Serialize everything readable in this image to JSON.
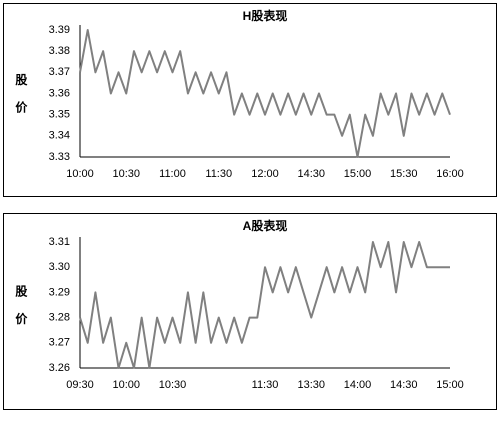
{
  "chart_data": [
    {
      "type": "line",
      "title": "H股表现",
      "y_label": "股 价",
      "categories": [
        "10:00",
        null,
        null,
        null,
        null,
        null,
        "10:30",
        null,
        null,
        null,
        null,
        null,
        "11:00",
        null,
        null,
        null,
        null,
        null,
        "11:30",
        null,
        null,
        null,
        null,
        null,
        "12:00",
        null,
        null,
        null,
        null,
        null,
        "14:30",
        null,
        null,
        null,
        null,
        null,
        "15:00",
        null,
        null,
        null,
        null,
        null,
        "15:30",
        null,
        null,
        null,
        null,
        null,
        "16:00"
      ],
      "series": [
        {
          "color": "#808080",
          "values": [
            3.37,
            3.39,
            3.37,
            3.38,
            3.36,
            3.37,
            3.36,
            3.38,
            3.37,
            3.38,
            3.37,
            3.38,
            3.37,
            3.38,
            3.36,
            3.37,
            3.36,
            3.37,
            3.36,
            3.37,
            3.35,
            3.36,
            3.35,
            3.36,
            3.35,
            3.36,
            3.35,
            3.36,
            3.35,
            3.36,
            3.35,
            3.36,
            3.35,
            3.35,
            3.34,
            3.35,
            3.33,
            3.35,
            3.34,
            3.36,
            3.35,
            3.36,
            3.34,
            3.36,
            3.35,
            3.36,
            3.35,
            3.36,
            3.35
          ]
        }
      ],
      "ylim": [
        3.33,
        3.39
      ],
      "yticks": [
        3.33,
        3.34,
        3.35,
        3.36,
        3.37,
        3.38,
        3.39
      ],
      "grid": false
    },
    {
      "type": "line",
      "title": "A股表现",
      "y_label": "股 价",
      "categories": [
        "09:30",
        null,
        null,
        null,
        null,
        null,
        "10:00",
        null,
        null,
        null,
        null,
        null,
        "10:30",
        null,
        null,
        null,
        null,
        null,
        null,
        null,
        null,
        null,
        null,
        null,
        "11:30",
        null,
        null,
        null,
        null,
        null,
        "13:30",
        null,
        null,
        null,
        null,
        null,
        "14:00",
        null,
        null,
        null,
        null,
        null,
        "14:30",
        null,
        null,
        null,
        null,
        null,
        "15:00"
      ],
      "series": [
        {
          "color": "#808080",
          "values": [
            3.28,
            3.27,
            3.29,
            3.27,
            3.28,
            3.26,
            3.27,
            3.26,
            3.28,
            3.26,
            3.28,
            3.27,
            3.28,
            3.27,
            3.29,
            3.27,
            3.29,
            3.27,
            3.28,
            3.27,
            3.28,
            3.27,
            3.28,
            3.28,
            3.3,
            3.29,
            3.3,
            3.29,
            3.3,
            3.29,
            3.28,
            3.29,
            3.3,
            3.29,
            3.3,
            3.29,
            3.3,
            3.29,
            3.31,
            3.3,
            3.31,
            3.29,
            3.31,
            3.3,
            3.31,
            3.3,
            3.3,
            3.3,
            3.3
          ]
        }
      ],
      "ylim": [
        3.26,
        3.31
      ],
      "yticks": [
        3.26,
        3.27,
        3.28,
        3.29,
        {
          "value": 3.3,
          "label": "3.30"
        },
        3.31
      ],
      "grid": false
    }
  ]
}
